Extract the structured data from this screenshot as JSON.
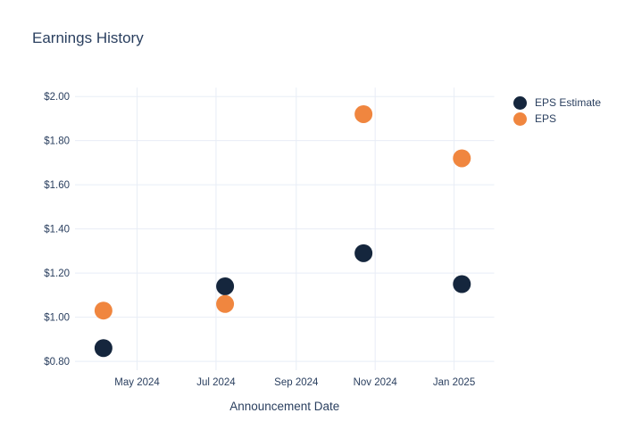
{
  "chart_data": {
    "type": "scatter",
    "title": "Earnings History",
    "xlabel": "Announcement Date",
    "ylabel": "",
    "x_tick_labels": [
      "May 2024",
      "Jul 2024",
      "Sep 2024",
      "Nov 2024",
      "Jan 2025"
    ],
    "x_tick_dates": [
      "2024-05-01",
      "2024-07-01",
      "2024-09-01",
      "2024-11-01",
      "2025-01-01"
    ],
    "x_range": [
      "2024-03-14",
      "2025-02-01"
    ],
    "y_ticks": [
      0.8,
      1.0,
      1.2,
      1.4,
      1.6,
      1.8,
      2.0
    ],
    "y_tick_labels": [
      "$0.80",
      "$1.00",
      "$1.20",
      "$1.40",
      "$1.60",
      "$1.80",
      "$2.00"
    ],
    "y_range": [
      0.76,
      2.04
    ],
    "grid": true,
    "legend_position": "top-right",
    "series": [
      {
        "name": "EPS Estimate",
        "color": "#15263D",
        "points": [
          {
            "date": "2024-04-05",
            "value": 0.86
          },
          {
            "date": "2024-07-08",
            "value": 1.14
          },
          {
            "date": "2024-10-23",
            "value": 1.29
          },
          {
            "date": "2025-01-07",
            "value": 1.15
          }
        ]
      },
      {
        "name": "EPS",
        "color": "#F0863F",
        "points": [
          {
            "date": "2024-04-05",
            "value": 1.03
          },
          {
            "date": "2024-07-08",
            "value": 1.06
          },
          {
            "date": "2024-10-23",
            "value": 1.92
          },
          {
            "date": "2025-01-07",
            "value": 1.72
          }
        ]
      }
    ]
  },
  "colors": {
    "text": "#2A3F5F",
    "grid": "#E8EDF6",
    "background": "#FFFFFF"
  }
}
